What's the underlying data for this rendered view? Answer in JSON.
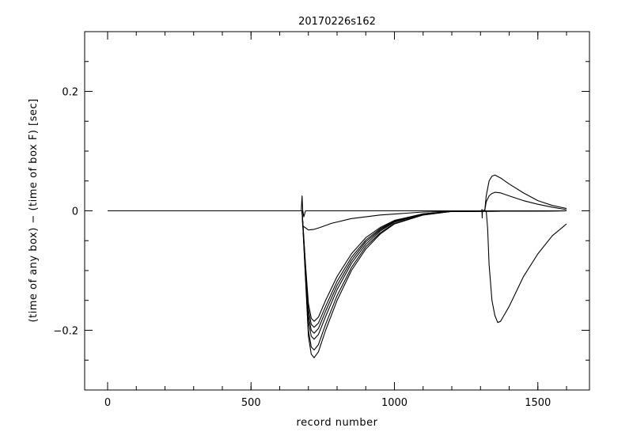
{
  "chart_data": {
    "type": "line",
    "title": "20170226s162",
    "xlabel": "record number",
    "ylabel": "(time of any box) − (time of box F) [sec]",
    "xlim": [
      -80,
      1680
    ],
    "ylim": [
      -0.3,
      0.3
    ],
    "x_ticks": [
      0,
      500,
      1000,
      1500
    ],
    "x_tick_labels": [
      "0",
      "500",
      "1000",
      "1500"
    ],
    "y_ticks": [
      -0.2,
      0,
      0.2
    ],
    "y_tick_labels": [
      "−0.2",
      "0",
      "0.2"
    ],
    "x_minor_step": 100,
    "y_minor_step": 0.05,
    "grid": false,
    "series": [
      {
        "x": [
          0,
          300,
          600,
          678,
          680,
          700,
          720,
          740,
          780,
          850,
          950,
          1100,
          1300,
          1600
        ],
        "y": [
          0,
          0,
          0,
          0,
          -0.025,
          -0.032,
          -0.031,
          -0.028,
          -0.021,
          -0.013,
          -0.007,
          -0.002,
          0,
          0
        ]
      },
      {
        "x": [
          0,
          300,
          600,
          678,
          690,
          700,
          710,
          720,
          735,
          760,
          800,
          850,
          900,
          950,
          1000,
          1100,
          1200,
          1600
        ],
        "y": [
          0,
          0,
          0,
          0,
          -0.09,
          -0.155,
          -0.18,
          -0.185,
          -0.178,
          -0.15,
          -0.11,
          -0.072,
          -0.045,
          -0.028,
          -0.016,
          -0.005,
          -0.001,
          0
        ]
      },
      {
        "x": [
          0,
          300,
          600,
          678,
          690,
          700,
          710,
          720,
          735,
          760,
          800,
          850,
          900,
          950,
          1000,
          1100,
          1200,
          1600
        ],
        "y": [
          0,
          0,
          0,
          0,
          -0.095,
          -0.165,
          -0.19,
          -0.195,
          -0.188,
          -0.16,
          -0.118,
          -0.078,
          -0.049,
          -0.03,
          -0.017,
          -0.005,
          -0.001,
          0
        ]
      },
      {
        "x": [
          0,
          300,
          600,
          678,
          690,
          700,
          710,
          720,
          735,
          760,
          800,
          850,
          900,
          950,
          1000,
          1100,
          1200,
          1600
        ],
        "y": [
          0,
          0,
          0,
          0,
          -0.1,
          -0.175,
          -0.2,
          -0.205,
          -0.197,
          -0.168,
          -0.125,
          -0.083,
          -0.052,
          -0.032,
          -0.018,
          -0.006,
          -0.001,
          0
        ]
      },
      {
        "x": [
          0,
          300,
          600,
          678,
          690,
          700,
          710,
          720,
          735,
          760,
          800,
          850,
          900,
          950,
          1000,
          1100,
          1200,
          1600
        ],
        "y": [
          0,
          0,
          0,
          0,
          -0.105,
          -0.185,
          -0.21,
          -0.215,
          -0.207,
          -0.177,
          -0.132,
          -0.088,
          -0.056,
          -0.034,
          -0.019,
          -0.006,
          -0.001,
          0
        ]
      },
      {
        "x": [
          0,
          300,
          600,
          678,
          690,
          700,
          710,
          720,
          735,
          760,
          800,
          850,
          900,
          950,
          1000,
          1100,
          1200,
          1600
        ],
        "y": [
          0,
          0,
          0,
          0,
          -0.11,
          -0.2,
          -0.228,
          -0.233,
          -0.224,
          -0.19,
          -0.142,
          -0.095,
          -0.06,
          -0.037,
          -0.021,
          -0.007,
          -0.001,
          0
        ]
      },
      {
        "x": [
          0,
          300,
          600,
          678,
          690,
          700,
          710,
          720,
          735,
          760,
          800,
          850,
          900,
          950,
          1000,
          1100,
          1200,
          1600
        ],
        "y": [
          0,
          0,
          0,
          0,
          -0.115,
          -0.21,
          -0.24,
          -0.246,
          -0.236,
          -0.2,
          -0.15,
          -0.1,
          -0.064,
          -0.039,
          -0.022,
          -0.007,
          -0.001,
          0
        ]
      },
      {
        "x": [
          0,
          300,
          600,
          675,
          678,
          680,
          684,
          690,
          1000,
          1300,
          1600
        ],
        "y": [
          0,
          0,
          0,
          0,
          0.025,
          0.002,
          -0.01,
          0,
          0,
          0,
          0
        ]
      },
      {
        "x": [
          1300,
          1315,
          1320,
          1330,
          1340,
          1350,
          1370,
          1400,
          1450,
          1500,
          1550,
          1600
        ],
        "y": [
          0,
          0.001,
          0.025,
          0.05,
          0.058,
          0.06,
          0.055,
          0.045,
          0.03,
          0.017,
          0.009,
          0.004
        ]
      },
      {
        "x": [
          1300,
          1315,
          1320,
          1330,
          1340,
          1350,
          1370,
          1400,
          1450,
          1500,
          1550,
          1600
        ],
        "y": [
          0,
          0.001,
          0.015,
          0.025,
          0.029,
          0.031,
          0.03,
          0.025,
          0.017,
          0.011,
          0.006,
          0.002
        ]
      },
      {
        "x": [
          1300,
          1320,
          1325,
          1330,
          1340,
          1350,
          1360,
          1370,
          1400,
          1450,
          1500,
          1550,
          1600
        ],
        "y": [
          0,
          0,
          -0.03,
          -0.09,
          -0.15,
          -0.175,
          -0.187,
          -0.185,
          -0.16,
          -0.11,
          -0.072,
          -0.042,
          -0.022
        ]
      },
      {
        "x": [
          1305,
          1306,
          1307
        ],
        "y": [
          0.003,
          -0.012,
          0
        ]
      }
    ]
  }
}
